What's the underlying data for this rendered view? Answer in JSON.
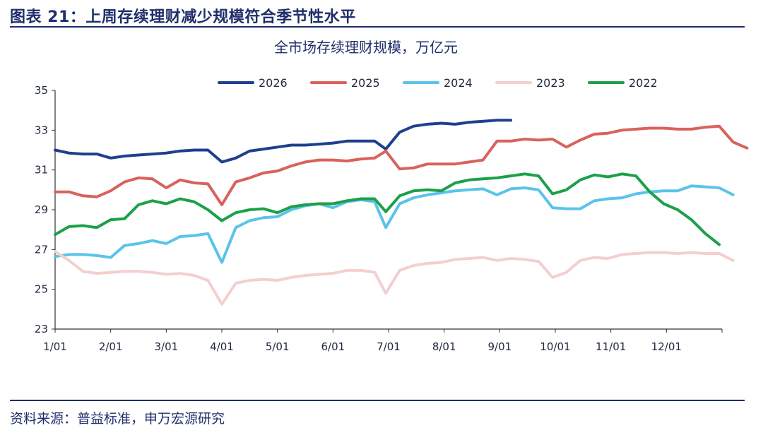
{
  "figure": {
    "title": "图表 21：上周存续理财减少规模符合季节性水平",
    "source": "资料来源：普益标准，申万宏源研究"
  },
  "chart_data": {
    "type": "line",
    "title": "全市场存续理财规模，万亿元",
    "xlabel": "",
    "ylabel": "",
    "ylim": [
      23,
      35
    ],
    "yticks": [
      23,
      25,
      27,
      29,
      31,
      33,
      35
    ],
    "xlim": [
      0,
      12
    ],
    "xticks": [
      "1/01",
      "2/01",
      "3/01",
      "4/01",
      "5/01",
      "6/01",
      "7/01",
      "8/01",
      "9/01",
      "10/01",
      "11/01",
      "12/01"
    ],
    "legend_position": "top",
    "grid": false,
    "series": [
      {
        "name": "2026",
        "color": "#1f3f8f",
        "points": [
          [
            0,
            32.0
          ],
          [
            0.25,
            31.85
          ],
          [
            0.5,
            31.8
          ],
          [
            0.75,
            31.8
          ],
          [
            1.0,
            31.6
          ],
          [
            1.25,
            31.7
          ],
          [
            1.5,
            31.75
          ],
          [
            1.75,
            31.8
          ],
          [
            2.0,
            31.85
          ],
          [
            2.25,
            31.95
          ],
          [
            2.5,
            32.0
          ],
          [
            2.75,
            32.0
          ],
          [
            3.0,
            31.4
          ],
          [
            3.25,
            31.6
          ],
          [
            3.5,
            31.95
          ],
          [
            3.75,
            32.05
          ],
          [
            4.0,
            32.15
          ],
          [
            4.25,
            32.25
          ],
          [
            4.5,
            32.25
          ],
          [
            4.75,
            32.3
          ],
          [
            5.0,
            32.35
          ],
          [
            5.25,
            32.45
          ],
          [
            5.5,
            32.45
          ],
          [
            5.75,
            32.45
          ],
          [
            5.95,
            32.05
          ],
          [
            6.2,
            32.9
          ],
          [
            6.45,
            33.2
          ],
          [
            6.7,
            33.3
          ],
          [
            6.95,
            33.35
          ],
          [
            7.2,
            33.3
          ],
          [
            7.45,
            33.4
          ],
          [
            7.7,
            33.45
          ],
          [
            7.95,
            33.5
          ],
          [
            8.2,
            33.5
          ]
        ]
      },
      {
        "name": "2025",
        "color": "#d9625d",
        "points": [
          [
            0,
            29.9
          ],
          [
            0.25,
            29.9
          ],
          [
            0.5,
            29.7
          ],
          [
            0.75,
            29.65
          ],
          [
            1.0,
            29.95
          ],
          [
            1.25,
            30.4
          ],
          [
            1.5,
            30.6
          ],
          [
            1.75,
            30.55
          ],
          [
            2.0,
            30.1
          ],
          [
            2.25,
            30.5
          ],
          [
            2.5,
            30.35
          ],
          [
            2.75,
            30.3
          ],
          [
            3.0,
            29.25
          ],
          [
            3.25,
            30.4
          ],
          [
            3.5,
            30.6
          ],
          [
            3.75,
            30.85
          ],
          [
            4.0,
            30.95
          ],
          [
            4.25,
            31.2
          ],
          [
            4.5,
            31.4
          ],
          [
            4.75,
            31.5
          ],
          [
            5.0,
            31.5
          ],
          [
            5.25,
            31.45
          ],
          [
            5.5,
            31.55
          ],
          [
            5.75,
            31.6
          ],
          [
            5.95,
            31.95
          ],
          [
            6.2,
            31.05
          ],
          [
            6.45,
            31.1
          ],
          [
            6.7,
            31.3
          ],
          [
            6.95,
            31.3
          ],
          [
            7.2,
            31.3
          ],
          [
            7.45,
            31.4
          ],
          [
            7.7,
            31.5
          ],
          [
            7.95,
            32.45
          ],
          [
            8.2,
            32.45
          ],
          [
            8.45,
            32.55
          ],
          [
            8.7,
            32.5
          ],
          [
            8.95,
            32.55
          ],
          [
            9.2,
            32.15
          ],
          [
            9.45,
            32.5
          ],
          [
            9.7,
            32.8
          ],
          [
            9.95,
            32.85
          ],
          [
            10.2,
            33.0
          ],
          [
            10.45,
            33.05
          ],
          [
            10.7,
            33.1
          ],
          [
            10.95,
            33.1
          ],
          [
            11.2,
            33.05
          ],
          [
            11.45,
            33.05
          ],
          [
            11.7,
            33.15
          ],
          [
            11.95,
            33.2
          ],
          [
            12.2,
            32.4
          ],
          [
            12.45,
            32.1
          ]
        ]
      },
      {
        "name": "2024",
        "color": "#5bc3ea",
        "points": [
          [
            0,
            26.65
          ],
          [
            0.25,
            26.75
          ],
          [
            0.5,
            26.75
          ],
          [
            0.75,
            26.7
          ],
          [
            1.0,
            26.6
          ],
          [
            1.25,
            27.2
          ],
          [
            1.5,
            27.3
          ],
          [
            1.75,
            27.45
          ],
          [
            2.0,
            27.3
          ],
          [
            2.25,
            27.65
          ],
          [
            2.5,
            27.7
          ],
          [
            2.75,
            27.8
          ],
          [
            3.0,
            26.35
          ],
          [
            3.25,
            28.1
          ],
          [
            3.5,
            28.45
          ],
          [
            3.75,
            28.6
          ],
          [
            4.0,
            28.65
          ],
          [
            4.25,
            29.0
          ],
          [
            4.5,
            29.2
          ],
          [
            4.75,
            29.3
          ],
          [
            5.0,
            29.1
          ],
          [
            5.25,
            29.4
          ],
          [
            5.5,
            29.5
          ],
          [
            5.75,
            29.4
          ],
          [
            5.95,
            28.1
          ],
          [
            6.2,
            29.3
          ],
          [
            6.45,
            29.6
          ],
          [
            6.7,
            29.75
          ],
          [
            6.95,
            29.85
          ],
          [
            7.2,
            29.95
          ],
          [
            7.45,
            30.0
          ],
          [
            7.7,
            30.05
          ],
          [
            7.95,
            29.75
          ],
          [
            8.2,
            30.05
          ],
          [
            8.45,
            30.1
          ],
          [
            8.7,
            30.0
          ],
          [
            8.95,
            29.1
          ],
          [
            9.2,
            29.05
          ],
          [
            9.45,
            29.05
          ],
          [
            9.7,
            29.45
          ],
          [
            9.95,
            29.55
          ],
          [
            10.2,
            29.6
          ],
          [
            10.45,
            29.8
          ],
          [
            10.7,
            29.9
          ],
          [
            10.95,
            29.95
          ],
          [
            11.2,
            29.95
          ],
          [
            11.45,
            30.2
          ],
          [
            11.7,
            30.15
          ],
          [
            11.95,
            30.1
          ],
          [
            12.2,
            29.75
          ]
        ]
      },
      {
        "name": "2023",
        "color": "#f4cfcf",
        "points": [
          [
            0,
            26.9
          ],
          [
            0.25,
            26.45
          ],
          [
            0.5,
            25.9
          ],
          [
            0.75,
            25.8
          ],
          [
            1.0,
            25.85
          ],
          [
            1.25,
            25.9
          ],
          [
            1.5,
            25.9
          ],
          [
            1.75,
            25.85
          ],
          [
            2.0,
            25.75
          ],
          [
            2.25,
            25.8
          ],
          [
            2.5,
            25.7
          ],
          [
            2.75,
            25.45
          ],
          [
            3.0,
            24.25
          ],
          [
            3.25,
            25.3
          ],
          [
            3.5,
            25.45
          ],
          [
            3.75,
            25.5
          ],
          [
            4.0,
            25.45
          ],
          [
            4.25,
            25.6
          ],
          [
            4.5,
            25.7
          ],
          [
            4.75,
            25.75
          ],
          [
            5.0,
            25.8
          ],
          [
            5.25,
            25.95
          ],
          [
            5.5,
            25.95
          ],
          [
            5.75,
            25.85
          ],
          [
            5.95,
            24.8
          ],
          [
            6.2,
            25.95
          ],
          [
            6.45,
            26.2
          ],
          [
            6.7,
            26.3
          ],
          [
            6.95,
            26.35
          ],
          [
            7.2,
            26.5
          ],
          [
            7.45,
            26.55
          ],
          [
            7.7,
            26.6
          ],
          [
            7.95,
            26.45
          ],
          [
            8.2,
            26.55
          ],
          [
            8.45,
            26.5
          ],
          [
            8.7,
            26.4
          ],
          [
            8.95,
            25.6
          ],
          [
            9.2,
            25.85
          ],
          [
            9.45,
            26.45
          ],
          [
            9.7,
            26.6
          ],
          [
            9.95,
            26.55
          ],
          [
            10.2,
            26.75
          ],
          [
            10.45,
            26.8
          ],
          [
            10.7,
            26.85
          ],
          [
            10.95,
            26.85
          ],
          [
            11.2,
            26.8
          ],
          [
            11.45,
            26.85
          ],
          [
            11.7,
            26.8
          ],
          [
            11.95,
            26.8
          ],
          [
            12.2,
            26.45
          ]
        ]
      },
      {
        "name": "2022",
        "color": "#1ca04a",
        "points": [
          [
            0,
            27.75
          ],
          [
            0.25,
            28.15
          ],
          [
            0.5,
            28.2
          ],
          [
            0.75,
            28.1
          ],
          [
            1.0,
            28.5
          ],
          [
            1.25,
            28.55
          ],
          [
            1.5,
            29.25
          ],
          [
            1.75,
            29.45
          ],
          [
            2.0,
            29.3
          ],
          [
            2.25,
            29.55
          ],
          [
            2.5,
            29.4
          ],
          [
            2.75,
            29.0
          ],
          [
            3.0,
            28.45
          ],
          [
            3.25,
            28.85
          ],
          [
            3.5,
            29.0
          ],
          [
            3.75,
            29.05
          ],
          [
            4.0,
            28.85
          ],
          [
            4.25,
            29.15
          ],
          [
            4.5,
            29.25
          ],
          [
            4.75,
            29.3
          ],
          [
            5.0,
            29.3
          ],
          [
            5.25,
            29.45
          ],
          [
            5.5,
            29.55
          ],
          [
            5.75,
            29.55
          ],
          [
            5.95,
            28.9
          ],
          [
            6.2,
            29.7
          ],
          [
            6.45,
            29.95
          ],
          [
            6.7,
            30.0
          ],
          [
            6.95,
            29.95
          ],
          [
            7.2,
            30.35
          ],
          [
            7.45,
            30.5
          ],
          [
            7.7,
            30.55
          ],
          [
            7.95,
            30.6
          ],
          [
            8.2,
            30.7
          ],
          [
            8.45,
            30.8
          ],
          [
            8.7,
            30.7
          ],
          [
            8.95,
            29.8
          ],
          [
            9.2,
            30.0
          ],
          [
            9.45,
            30.5
          ],
          [
            9.7,
            30.75
          ],
          [
            9.95,
            30.65
          ],
          [
            10.2,
            30.8
          ],
          [
            10.45,
            30.7
          ],
          [
            10.7,
            29.9
          ],
          [
            10.95,
            29.3
          ],
          [
            11.2,
            29.0
          ],
          [
            11.45,
            28.5
          ],
          [
            11.7,
            27.8
          ],
          [
            11.95,
            27.25
          ]
        ]
      }
    ]
  }
}
